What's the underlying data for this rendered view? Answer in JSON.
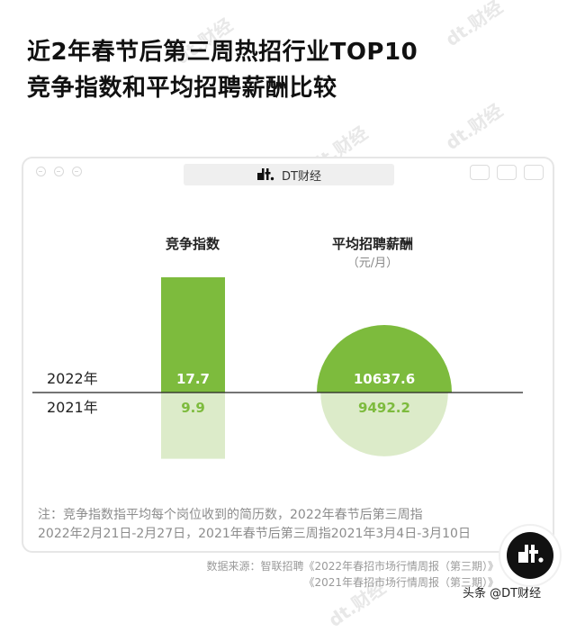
{
  "title": {
    "line1": "近2年春节后第三周热招行业TOP10",
    "line2": "竞争指数和平均招聘薪酬比较"
  },
  "window": {
    "brand_text": "DT财经"
  },
  "chart_data": {
    "type": "bar",
    "columns": [
      {
        "title": "竞争指数",
        "subtitle": "",
        "mark": "bar"
      },
      {
        "title": "平均招聘薪酬",
        "subtitle": "（元/月）",
        "mark": "half-circle"
      }
    ],
    "series": [
      {
        "name": "2022年",
        "values": [
          17.7,
          10637.6
        ],
        "color": "#7dbb3d"
      },
      {
        "name": "2021年",
        "values": [
          9.9,
          9492.2
        ],
        "color": "#dcebc9"
      }
    ]
  },
  "note": {
    "line1": "注：竞争指数指平均每个岗位收到的简历数，2022年春节后第三周指",
    "line2": "2022年2月21日-2月27日，2021年春节后第三周指2021年3月4日-3月10日"
  },
  "source": {
    "line1": "数据来源：智联招聘《2022年春招市场行情周报（第三期）》",
    "line2": "《2021年春招市场行情周报（第三期）》"
  },
  "footer": {
    "toutiao": "头条 @DT财经"
  },
  "watermark": {
    "text": "dt.财经"
  },
  "icons": {
    "window_controls": [
      "close-icon",
      "minimize-icon",
      "settings-icon"
    ],
    "toolbar_right": [
      "record-icon",
      "share-icon",
      "copy-icon"
    ]
  }
}
